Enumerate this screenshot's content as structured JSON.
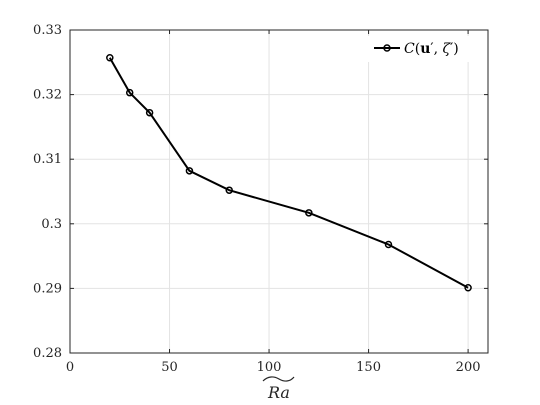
{
  "chart_data": {
    "type": "line",
    "xlabel": "Ra (tilde)",
    "ylabel": "",
    "xlim": [
      0,
      210
    ],
    "ylim": [
      0.28,
      0.33
    ],
    "xticks": [
      "0",
      "50",
      "100",
      "150",
      "200"
    ],
    "xtick_values": [
      0,
      50,
      100,
      150,
      200
    ],
    "yticks": [
      "0.28",
      "0.29",
      "0.3",
      "0.31",
      "0.32",
      "0.33"
    ],
    "ytick_values": [
      0.28,
      0.29,
      0.3,
      0.31,
      0.32,
      0.33
    ],
    "grid": true,
    "legend_position": "top-right",
    "series": [
      {
        "name": "C(u', ζ')",
        "color": "#000000",
        "marker": "circle",
        "x": [
          20,
          30,
          40,
          60,
          80,
          120,
          160,
          200
        ],
        "y": [
          0.3257,
          0.3203,
          0.3172,
          0.3082,
          0.3052,
          0.3017,
          0.2968,
          0.2901
        ]
      }
    ]
  },
  "legend": {
    "c_text": "C",
    "open_paren": "(",
    "u_text": "u",
    "prime1": "′",
    "comma": ", ",
    "zeta_text": "ζ",
    "prime2": "′",
    "close_paren": ")"
  },
  "axis": {
    "xlabel_text": "Ra"
  }
}
